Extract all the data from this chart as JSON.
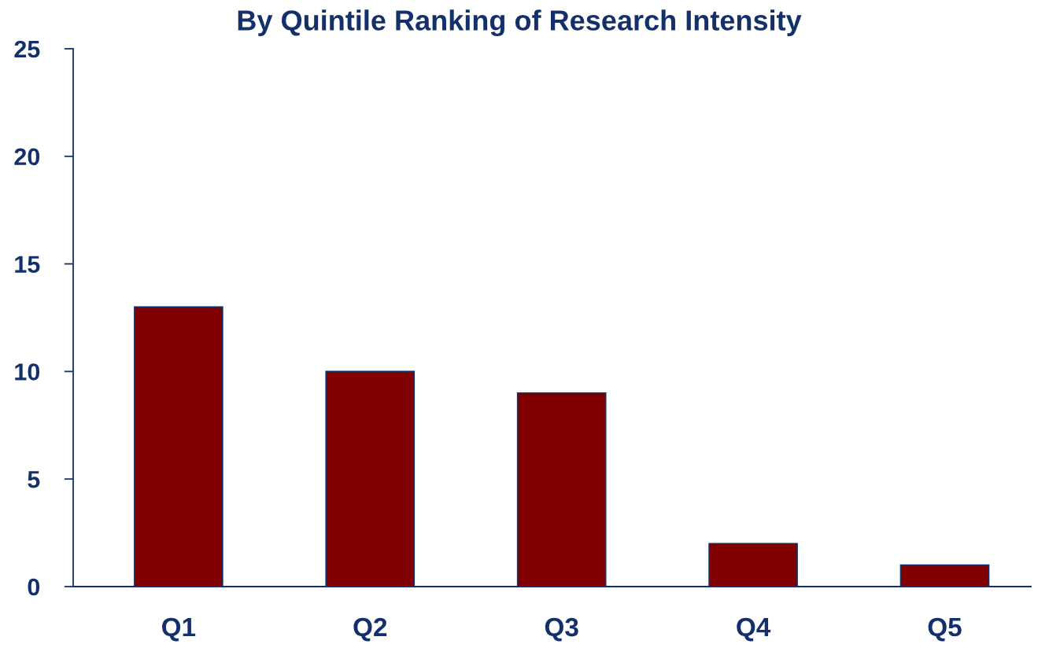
{
  "chart_data": {
    "type": "bar",
    "title": "By Quintile Ranking of Research Intensity",
    "categories": [
      "Q1",
      "Q2",
      "Q3",
      "Q4",
      "Q5"
    ],
    "values": [
      13,
      10,
      9,
      2,
      1
    ],
    "color": "#800000",
    "ylim": [
      0,
      25
    ],
    "yticks": [
      0,
      5,
      10,
      15,
      20,
      25
    ]
  }
}
